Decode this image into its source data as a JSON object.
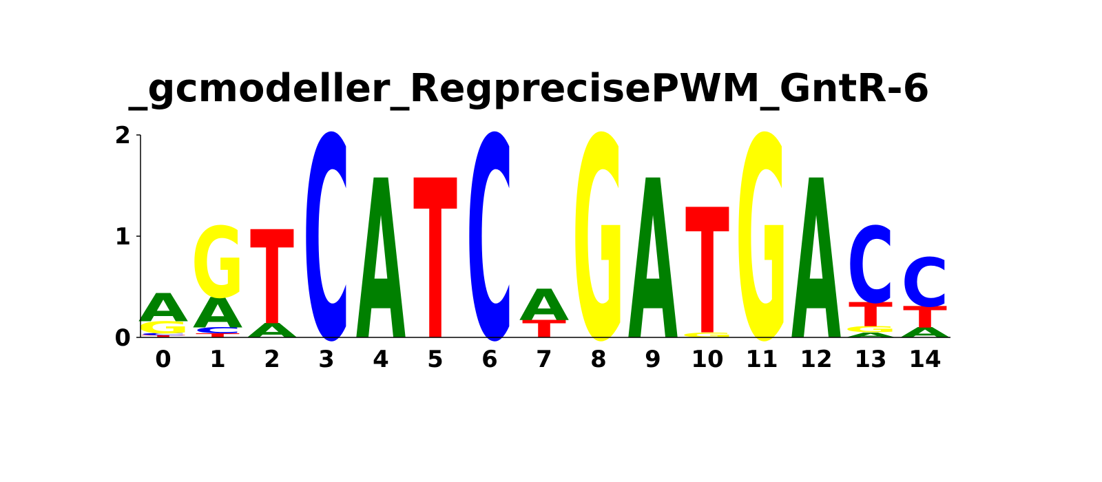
{
  "chart_data": {
    "type": "sequence-logo",
    "title": "_gcmodeller_RegprecisePWM_GntR-6",
    "ylim": [
      0,
      2
    ],
    "y_ticks": [
      "0",
      "1",
      "2"
    ],
    "x_ticks": [
      "0",
      "1",
      "2",
      "3",
      "4",
      "5",
      "6",
      "7",
      "8",
      "9",
      "10",
      "11",
      "12",
      "13",
      "14"
    ],
    "colors": {
      "A": "#008000",
      "C": "#0000ff",
      "G": "#ffff00",
      "T": "#ff0000"
    },
    "positions": [
      {
        "x": "0",
        "stack": [
          {
            "base": "T",
            "height": 0.02
          },
          {
            "base": "C",
            "height": 0.02
          },
          {
            "base": "G",
            "height": 0.12
          },
          {
            "base": "A",
            "height": 0.28
          }
        ]
      },
      {
        "x": "1",
        "stack": [
          {
            "base": "T",
            "height": 0.04
          },
          {
            "base": "C",
            "height": 0.06
          },
          {
            "base": "A",
            "height": 0.3
          },
          {
            "base": "G",
            "height": 0.7
          }
        ]
      },
      {
        "x": "2",
        "stack": [
          {
            "base": "A",
            "height": 0.14
          },
          {
            "base": "T",
            "height": 0.93
          }
        ]
      },
      {
        "x": "3",
        "stack": [
          {
            "base": "C",
            "height": 2.0
          }
        ]
      },
      {
        "x": "4",
        "stack": [
          {
            "base": "A",
            "height": 1.58
          }
        ]
      },
      {
        "x": "5",
        "stack": [
          {
            "base": "T",
            "height": 1.58
          }
        ]
      },
      {
        "x": "6",
        "stack": [
          {
            "base": "C",
            "height": 2.0
          }
        ]
      },
      {
        "x": "7",
        "stack": [
          {
            "base": "T",
            "height": 0.17
          },
          {
            "base": "A",
            "height": 0.31
          }
        ]
      },
      {
        "x": "8",
        "stack": [
          {
            "base": "G",
            "height": 2.0
          }
        ]
      },
      {
        "x": "9",
        "stack": [
          {
            "base": "A",
            "height": 1.58
          }
        ]
      },
      {
        "x": "10",
        "stack": [
          {
            "base": "G",
            "height": 0.05
          },
          {
            "base": "T",
            "height": 1.24
          }
        ]
      },
      {
        "x": "11",
        "stack": [
          {
            "base": "G",
            "height": 2.0
          }
        ]
      },
      {
        "x": "12",
        "stack": [
          {
            "base": "A",
            "height": 1.58
          }
        ]
      },
      {
        "x": "13",
        "stack": [
          {
            "base": "A",
            "height": 0.05
          },
          {
            "base": "G",
            "height": 0.06
          },
          {
            "base": "T",
            "height": 0.24
          },
          {
            "base": "C",
            "height": 0.75
          }
        ]
      },
      {
        "x": "14",
        "stack": [
          {
            "base": "A",
            "height": 0.1
          },
          {
            "base": "T",
            "height": 0.21
          },
          {
            "base": "C",
            "height": 0.48
          }
        ]
      }
    ]
  }
}
